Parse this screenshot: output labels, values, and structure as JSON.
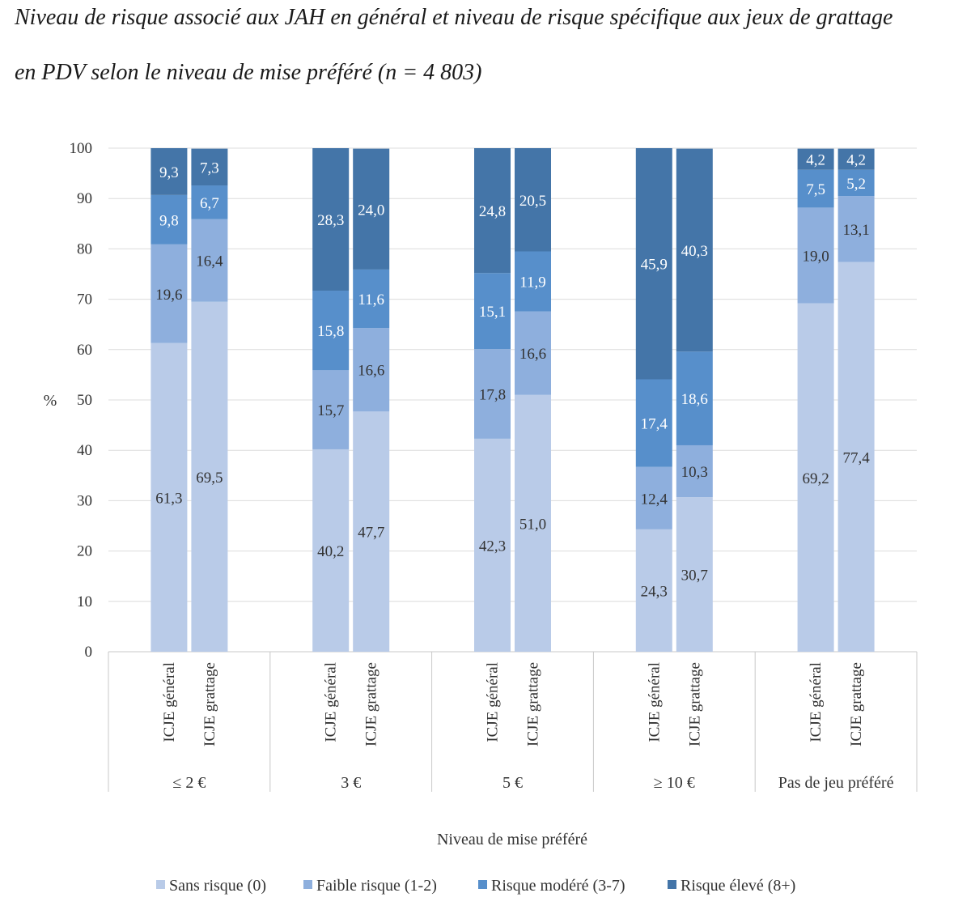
{
  "title_line1": "Niveau de risque associé aux JAH en général et niveau de risque spécifique aux jeux de grattage",
  "title_line2": "en PDV selon le niveau de mise préféré (n = 4 803)",
  "chart_data": {
    "type": "bar",
    "stacked": true,
    "ylabel": "%",
    "xlabel": "Niveau de mise préféré",
    "ylim": [
      0,
      100
    ],
    "yticks": [
      0,
      10,
      20,
      30,
      40,
      50,
      60,
      70,
      80,
      90,
      100
    ],
    "groups": [
      "≤ 2 €",
      "3 €",
      "5 €",
      "≥ 10 €",
      "Pas de jeu préféré"
    ],
    "bars": [
      "ICJE général",
      "ICJE grattage"
    ],
    "categories": [
      "≤ 2 € / ICJE général",
      "≤ 2 € / ICJE grattage",
      "3 € / ICJE général",
      "3 € / ICJE grattage",
      "5 € / ICJE général",
      "5 € / ICJE grattage",
      "≥ 10 € / ICJE général",
      "≥ 10 € / ICJE grattage",
      "Pas de jeu préféré / ICJE général",
      "Pas de jeu préféré / ICJE grattage"
    ],
    "series": [
      {
        "name": "Sans risque (0)",
        "color": "#b9cbe8",
        "text_color": "#333333",
        "values": [
          61.3,
          69.5,
          40.2,
          47.7,
          42.3,
          51.0,
          24.3,
          30.7,
          69.2,
          77.4
        ],
        "labels": [
          "61,3",
          "69,5",
          "40,2",
          "47,7",
          "42,3",
          "51,0",
          "24,3",
          "30,7",
          "69,2",
          "77,4"
        ]
      },
      {
        "name": "Faible risque (1-2)",
        "color": "#8eafdd",
        "text_color": "#333333",
        "values": [
          19.6,
          16.4,
          15.7,
          16.6,
          17.8,
          16.6,
          12.4,
          10.3,
          19.0,
          13.1
        ],
        "labels": [
          "19,6",
          "16,4",
          "15,7",
          "16,6",
          "17,8",
          "16,6",
          "12,4",
          "10,3",
          "19,0",
          "13,1"
        ]
      },
      {
        "name": "Risque modéré (3-7)",
        "color": "#578fcb",
        "text_color": "#ffffff",
        "values": [
          9.8,
          6.7,
          15.8,
          11.6,
          15.1,
          11.9,
          17.4,
          18.6,
          7.5,
          5.2
        ],
        "labels": [
          "9,8",
          "6,7",
          "15,8",
          "11,6",
          "15,1",
          "11,9",
          "17,4",
          "18,6",
          "7,5",
          "5,2"
        ]
      },
      {
        "name": "Risque élevé (8+)",
        "color": "#4475a8",
        "text_color": "#ffffff",
        "values": [
          9.3,
          7.3,
          28.3,
          24.0,
          24.8,
          20.5,
          45.9,
          40.3,
          4.2,
          4.2
        ],
        "labels": [
          "9,3",
          "7,3",
          "28,3",
          "24,0",
          "24,8",
          "20,5",
          "45,9",
          "40,3",
          "4,2",
          "4,2"
        ]
      }
    ],
    "legend_position": "bottom",
    "grid": true
  }
}
